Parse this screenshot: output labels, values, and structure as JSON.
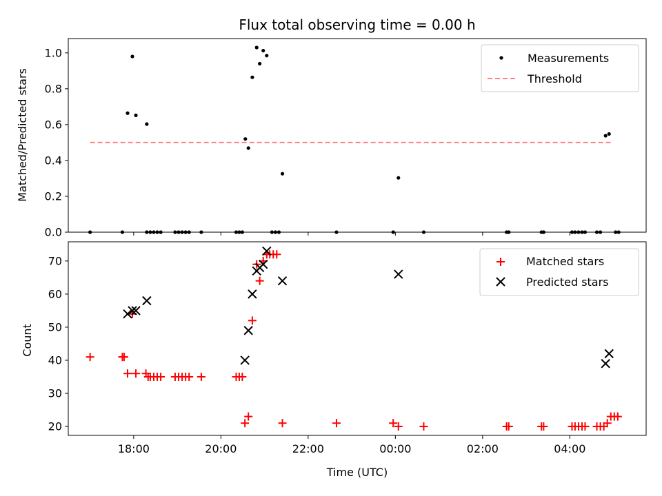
{
  "chart_data": [
    {
      "type": "scatter",
      "panel": "top",
      "title": "Flux total observing time = 0.00 h",
      "ylabel": "Matched/Predicted stars",
      "xlabel": "",
      "xlim_hours": [
        16.5,
        29.75
      ],
      "ylim": [
        0,
        1.08
      ],
      "yticks": [
        0.0,
        0.2,
        0.4,
        0.6,
        0.8,
        1.0
      ],
      "ytick_labels": [
        "0.0",
        "0.2",
        "0.4",
        "0.6",
        "0.8",
        "1.0"
      ],
      "xticks_hours": [
        18,
        20,
        22,
        24,
        26,
        28
      ],
      "legend_position": "top-right",
      "series": [
        {
          "name": "Measurements",
          "marker": "dot",
          "color": "#000000",
          "x": [
            17.0,
            17.74,
            17.86,
            17.97,
            18.05,
            18.3,
            18.3,
            18.38,
            18.46,
            18.54,
            18.62,
            18.95,
            19.03,
            19.11,
            19.19,
            19.27,
            19.55,
            20.35,
            20.42,
            20.49,
            20.56,
            20.63,
            20.72,
            20.82,
            20.89,
            20.97,
            21.05,
            21.17,
            21.25,
            21.33,
            21.41,
            22.65,
            23.95,
            24.07,
            24.65,
            26.55,
            26.6,
            27.35,
            27.4,
            28.05,
            28.12,
            28.2,
            28.28,
            28.35,
            28.62,
            28.7,
            28.82,
            28.9,
            29.05,
            29.12
          ],
          "values": [
            0,
            0,
            0.664,
            0.98,
            0.652,
            0.603,
            0,
            0,
            0,
            0,
            0,
            0,
            0,
            0,
            0,
            0,
            0,
            0,
            0,
            0,
            0.52,
            0.469,
            0.864,
            1.03,
            0.94,
            1.013,
            0.985,
            0,
            0,
            0,
            0.326,
            0,
            0,
            0.303,
            0,
            0,
            0,
            0,
            0,
            0,
            0,
            0,
            0,
            0,
            0,
            0,
            0.538,
            0.548,
            0,
            0
          ]
        },
        {
          "name": "Threshold",
          "style": "dashed-line",
          "color": "#ff7f7f",
          "x": [
            17.0,
            29.0
          ],
          "values": [
            0.5,
            0.5
          ]
        }
      ]
    },
    {
      "type": "scatter",
      "panel": "bottom",
      "title": "",
      "ylabel": "Count",
      "xlabel": "Time (UTC)",
      "xlim_hours": [
        16.5,
        29.75
      ],
      "ylim": [
        17.3,
        75.8
      ],
      "yticks": [
        20,
        30,
        40,
        50,
        60,
        70
      ],
      "ytick_labels": [
        "20",
        "30",
        "40",
        "50",
        "60",
        "70"
      ],
      "xticks_hours": [
        18,
        20,
        22,
        24,
        26,
        28
      ],
      "xtick_labels": [
        "18:00",
        "20:00",
        "22:00",
        "00:00",
        "02:00",
        "04:00"
      ],
      "legend_position": "top-right",
      "series": [
        {
          "name": "Matched stars",
          "marker": "plus",
          "color": "#ff0000",
          "x": [
            17.0,
            17.74,
            17.78,
            17.86,
            17.97,
            18.05,
            18.28,
            18.33,
            18.38,
            18.46,
            18.54,
            18.62,
            18.95,
            19.03,
            19.11,
            19.19,
            19.27,
            19.55,
            20.35,
            20.42,
            20.49,
            20.55,
            20.63,
            20.72,
            20.82,
            20.89,
            20.97,
            21.05,
            21.12,
            21.2,
            21.28,
            21.41,
            22.65,
            23.95,
            24.07,
            24.65,
            26.55,
            26.6,
            27.35,
            27.4,
            28.05,
            28.12,
            28.2,
            28.28,
            28.35,
            28.62,
            28.7,
            28.78,
            28.86,
            28.94,
            29.02,
            29.1
          ],
          "values": [
            41,
            41,
            41,
            36,
            54,
            36,
            36,
            35,
            35,
            35,
            35,
            35,
            35,
            35,
            35,
            35,
            35,
            35,
            35,
            35,
            35,
            21,
            23,
            52,
            69,
            64,
            70,
            72,
            72,
            72,
            72,
            21,
            21,
            21,
            20,
            20,
            20,
            20,
            20,
            20,
            20,
            20,
            20,
            20,
            20,
            20,
            20,
            20,
            21,
            23,
            23,
            23
          ]
        },
        {
          "name": "Predicted stars",
          "marker": "x",
          "color": "#000000",
          "x": [
            17.86,
            17.97,
            18.05,
            18.3,
            20.55,
            20.63,
            20.72,
            20.82,
            20.89,
            20.97,
            21.05,
            21.41,
            24.07,
            28.82,
            28.9
          ],
          "values": [
            54,
            55,
            55,
            58,
            40,
            49,
            60,
            67,
            68,
            69,
            73,
            64,
            66,
            39,
            42
          ]
        }
      ]
    }
  ]
}
